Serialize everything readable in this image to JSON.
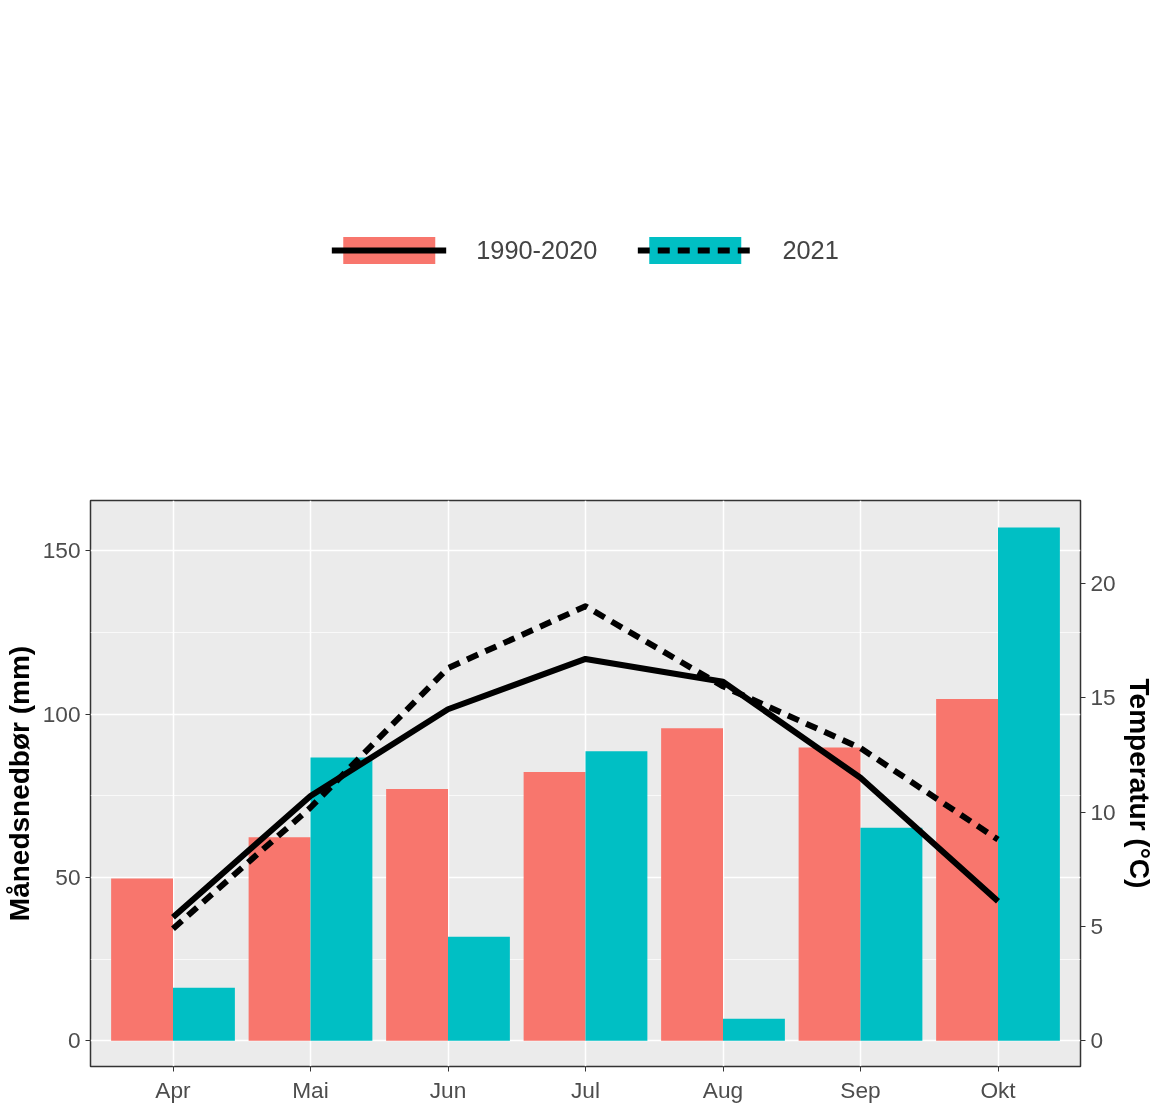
{
  "chart_data": {
    "type": "bar",
    "categories": [
      "Apr",
      "Mai",
      "Jun",
      "Jul",
      "Aug",
      "Sep",
      "Okt"
    ],
    "ylabel": "Månedsnedbør (mm)",
    "y2label": "Temperatur (°C)",
    "ylim": [
      -7.9,
      165.4
    ],
    "yticks": [
      0,
      50,
      100,
      150
    ],
    "y2lim": [
      -1.13,
      23.63
    ],
    "y2ticks": [
      0,
      5,
      10,
      15,
      20
    ],
    "grid": true,
    "legend": "top",
    "series": [
      {
        "name": "1990-2020",
        "color": "#f8766d",
        "values": [
          49.7,
          62.3,
          77.1,
          82.3,
          95.7,
          89.8,
          104.6
        ]
      },
      {
        "name": "2021",
        "color": "#00bfc4",
        "values": [
          16.2,
          86.7,
          31.8,
          88.6,
          6.7,
          65.2,
          157.1
        ]
      },
      {
        "type": "line",
        "axis": "y2",
        "color": "#000000",
        "line_style": "solid",
        "values": [
          5.4,
          10.7,
          14.5,
          16.7,
          15.7,
          11.5,
          6.1
        ]
      },
      {
        "type": "line",
        "axis": "y2",
        "color": "#000000",
        "line_style": "dashed",
        "values": [
          4.9,
          10.2,
          16.3,
          19.0,
          15.5,
          12.8,
          8.8
        ]
      }
    ]
  }
}
